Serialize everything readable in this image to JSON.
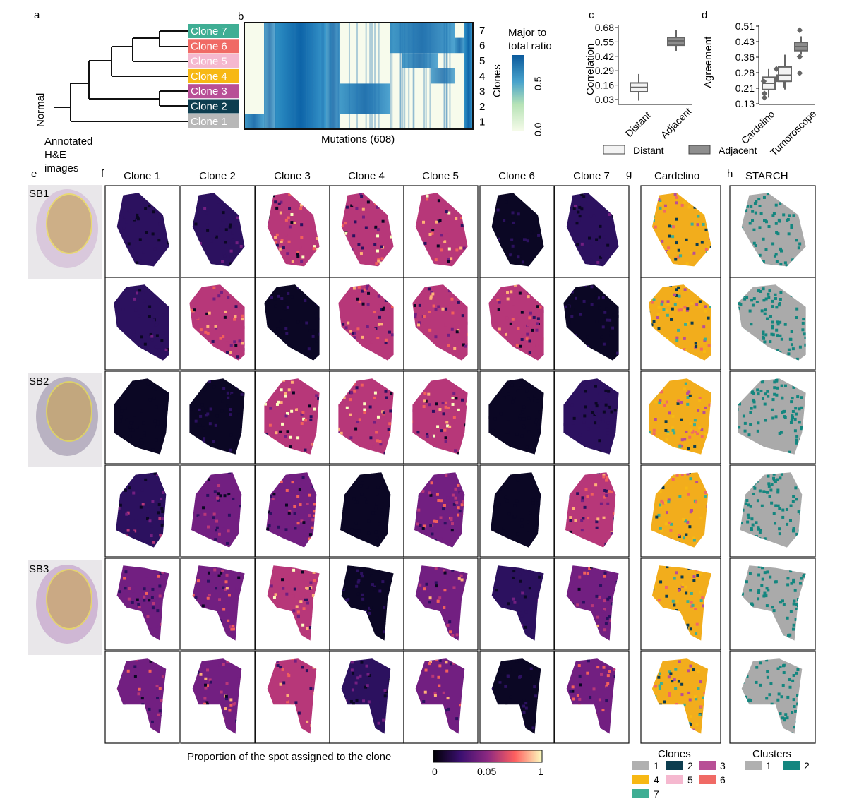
{
  "panels": {
    "a": "a",
    "b": "b",
    "c": "c",
    "d": "d",
    "e": "e",
    "f": "f",
    "g": "g",
    "h": "h"
  },
  "tree": {
    "normal_label": "Normal",
    "clones": [
      {
        "label": "Clone 7",
        "color": "#3fae94"
      },
      {
        "label": "Clone 6",
        "color": "#f06a65"
      },
      {
        "label": "Clone 5",
        "color": "#f5b8cf"
      },
      {
        "label": "Clone 4",
        "color": "#f7b814"
      },
      {
        "label": "Clone 3",
        "color": "#b84f96"
      },
      {
        "label": "Clone 2",
        "color": "#0d3d4f"
      },
      {
        "label": "Clone 1",
        "color": "#b8b8b8"
      }
    ]
  },
  "heatmap": {
    "xlabel": "Mutations (608)",
    "ylabel": "Clones",
    "row_labels": [
      "7",
      "6",
      "5",
      "4",
      "3",
      "2",
      "1"
    ],
    "colorbar_title_1": "Major to",
    "colorbar_title_2": "total ratio",
    "colorbar_ticks": [
      "0.5",
      "0.0"
    ]
  },
  "he": {
    "title_1": "Annotated",
    "title_2": "H&E",
    "title_3": "images",
    "samples": [
      "SB1",
      "SB2",
      "SB3"
    ]
  },
  "grid": {
    "clone_headers": [
      "Clone 1",
      "Clone 2",
      "Clone 3",
      "Clone 4",
      "Clone 5",
      "Clone 6",
      "Clone 7"
    ],
    "cardelino_title": "Cardelino",
    "starch_title": "STARCH",
    "colorbar_label": "Proportion of the spot assigned to the clone",
    "colorbar_ticks": [
      "0",
      "0.05",
      "1"
    ]
  },
  "legends": {
    "clones_title": "Clones",
    "clone_items": [
      {
        "label": "1",
        "color": "#b0b0b0"
      },
      {
        "label": "2",
        "color": "#0d3d4f"
      },
      {
        "label": "3",
        "color": "#b84f96"
      },
      {
        "label": "4",
        "color": "#f7b814"
      },
      {
        "label": "5",
        "color": "#f5b8cf"
      },
      {
        "label": "6",
        "color": "#f06a65"
      },
      {
        "label": "7",
        "color": "#3fae94"
      }
    ],
    "clusters_title": "Clusters",
    "cluster_items": [
      {
        "label": "1",
        "color": "#b0b0b0"
      },
      {
        "label": "2",
        "color": "#14867f"
      }
    ],
    "box_legend": [
      {
        "label": "Distant",
        "color": "#f3f3f3"
      },
      {
        "label": "Adjacent",
        "color": "#8e8e8e"
      }
    ]
  },
  "chart_data": [
    {
      "type": "box",
      "panel": "c",
      "title": "",
      "ylabel": "Correlation",
      "categories": [
        "Distant",
        "Adjacent"
      ],
      "yticks": [
        "0.68",
        "0.55",
        "0.42",
        "0.29",
        "0.16",
        "0.03"
      ],
      "ylim": [
        0.0,
        0.7
      ],
      "boxes": [
        {
          "category": "Distant",
          "whisker_low": 0.02,
          "q1": 0.1,
          "median": 0.14,
          "q3": 0.18,
          "whisker_high": 0.26
        },
        {
          "category": "Adjacent",
          "whisker_low": 0.47,
          "q1": 0.52,
          "median": 0.56,
          "q3": 0.59,
          "whisker_high": 0.66
        }
      ]
    },
    {
      "type": "box",
      "panel": "d",
      "title": "",
      "ylabel": "Agreement",
      "categories": [
        "Cardelino",
        "Tumoroscope"
      ],
      "yticks": [
        "0.51",
        "0.43",
        "0.36",
        "0.28",
        "0.21",
        "0.13"
      ],
      "ylim": [
        0.13,
        0.52
      ],
      "series": [
        {
          "name": "Distant",
          "boxes": [
            {
              "category": "Cardelino",
              "whisker_low": 0.16,
              "q1": 0.2,
              "median": 0.23,
              "q3": 0.26,
              "whisker_high": 0.3
            },
            {
              "category": "Tumoroscope",
              "whisker_low": 0.2,
              "q1": 0.24,
              "median": 0.27,
              "q3": 0.31,
              "whisker_high": 0.37
            }
          ]
        },
        {
          "name": "Adjacent",
          "boxes": [
            {
              "category": "Cardelino",
              "whisker_low": 0.21,
              "q1": 0.24,
              "median": 0.26,
              "q3": 0.27,
              "whisker_high": 0.28
            },
            {
              "category": "Tumoroscope",
              "whisker_low": 0.37,
              "q1": 0.39,
              "median": 0.41,
              "q3": 0.43,
              "whisker_high": 0.46
            }
          ]
        }
      ]
    }
  ]
}
